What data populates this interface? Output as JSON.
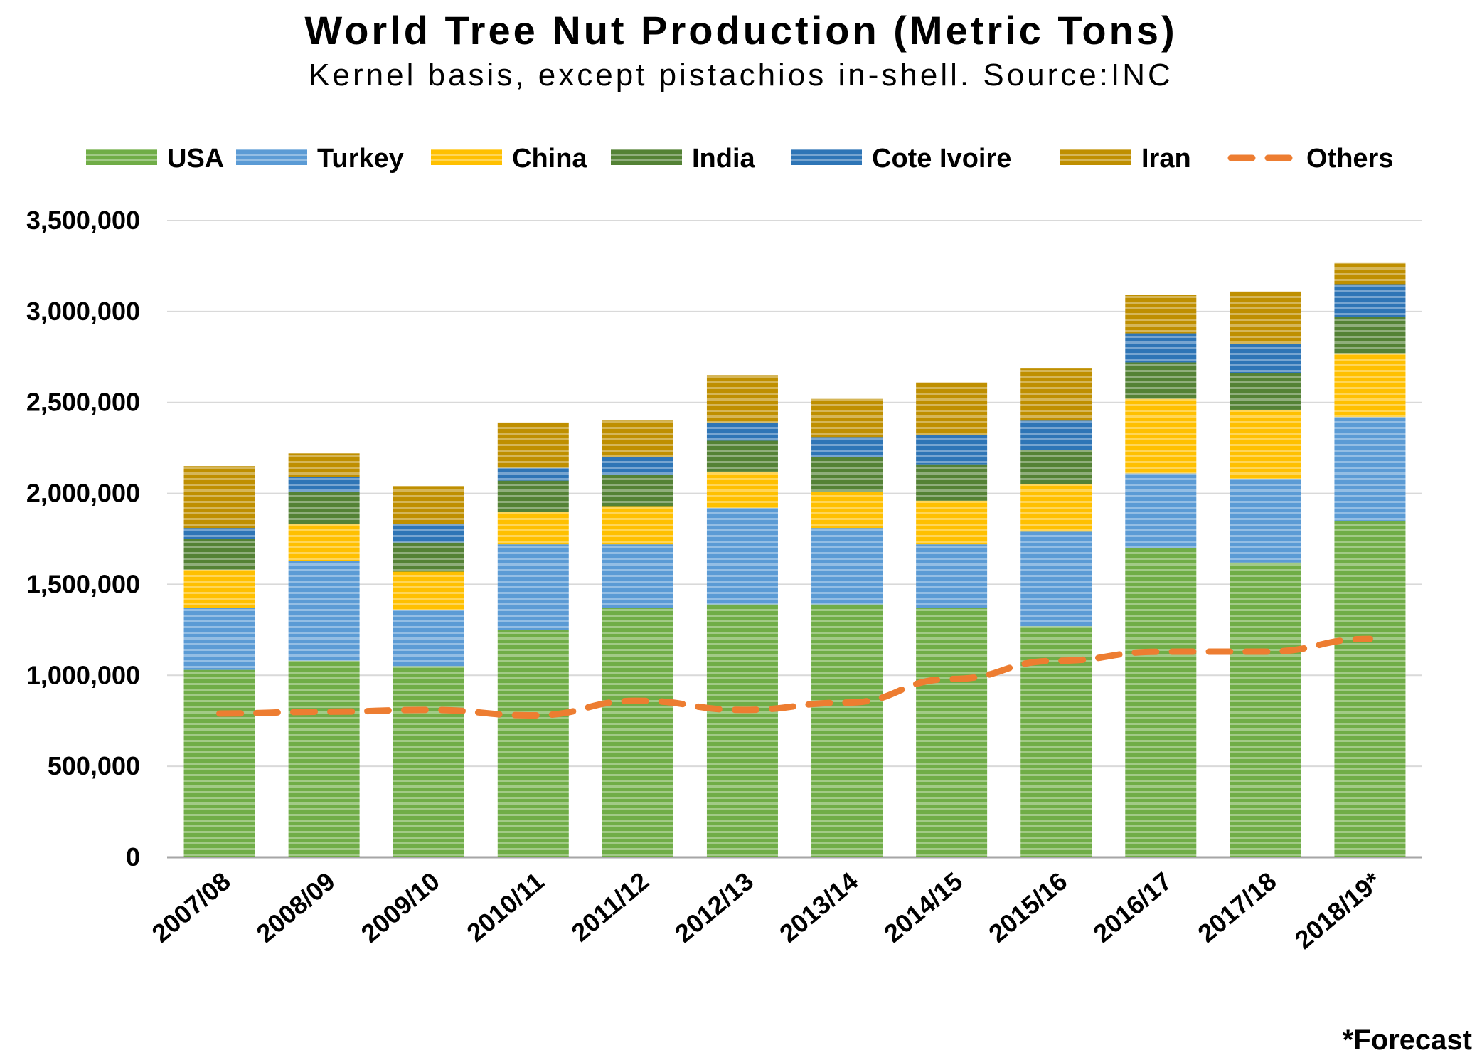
{
  "chart_data": {
    "type": "bar",
    "stacked": true,
    "title": "World Tree Nut Production (Metric Tons)",
    "subtitle": "Kernel basis, except pistachios in-shell. Source:INC",
    "categories": [
      "2007/08",
      "2008/09",
      "2009/10",
      "2010/11",
      "2011/12",
      "2012/13",
      "2013/14",
      "2014/15",
      "2015/16",
      "2016/17",
      "2017/18",
      "2018/19*"
    ],
    "ylim": [
      0,
      3500000
    ],
    "yticks": [
      0,
      500000,
      1000000,
      1500000,
      2000000,
      2500000,
      3000000,
      3500000
    ],
    "ytick_labels": [
      "0",
      "500,000",
      "1,000,000",
      "1,500,000",
      "2,000,000",
      "2,500,000",
      "3,000,000",
      "3,500,000"
    ],
    "grid": true,
    "legend_position": "top",
    "series": [
      {
        "name": "USA",
        "color": "#70ad47",
        "values": [
          1030000,
          1080000,
          1050000,
          1250000,
          1370000,
          1390000,
          1390000,
          1370000,
          1270000,
          1700000,
          1620000,
          1850000
        ]
      },
      {
        "name": "Turkey",
        "color": "#5b9bd5",
        "values": [
          340000,
          550000,
          310000,
          470000,
          350000,
          530000,
          420000,
          350000,
          520000,
          410000,
          460000,
          570000
        ]
      },
      {
        "name": "China",
        "color": "#ffc000",
        "values": [
          210000,
          200000,
          210000,
          180000,
          210000,
          200000,
          200000,
          240000,
          260000,
          410000,
          380000,
          350000
        ]
      },
      {
        "name": "India",
        "color": "#548235",
        "values": [
          170000,
          180000,
          160000,
          170000,
          170000,
          170000,
          190000,
          200000,
          190000,
          200000,
          200000,
          200000
        ]
      },
      {
        "name": "Cote Ivoire",
        "color": "#2e75b6",
        "values": [
          60000,
          80000,
          100000,
          70000,
          100000,
          100000,
          110000,
          160000,
          160000,
          160000,
          160000,
          180000
        ]
      },
      {
        "name": "Iran",
        "color": "#bf8f00",
        "values": [
          340000,
          130000,
          210000,
          250000,
          200000,
          260000,
          210000,
          290000,
          290000,
          210000,
          290000,
          120000
        ]
      }
    ],
    "line_series": {
      "name": "Others",
      "color": "#ed7d31",
      "style": "dashed",
      "values": [
        790000,
        800000,
        810000,
        780000,
        860000,
        810000,
        850000,
        980000,
        1080000,
        1130000,
        1130000,
        1200000
      ]
    },
    "note": "*Forecast"
  }
}
